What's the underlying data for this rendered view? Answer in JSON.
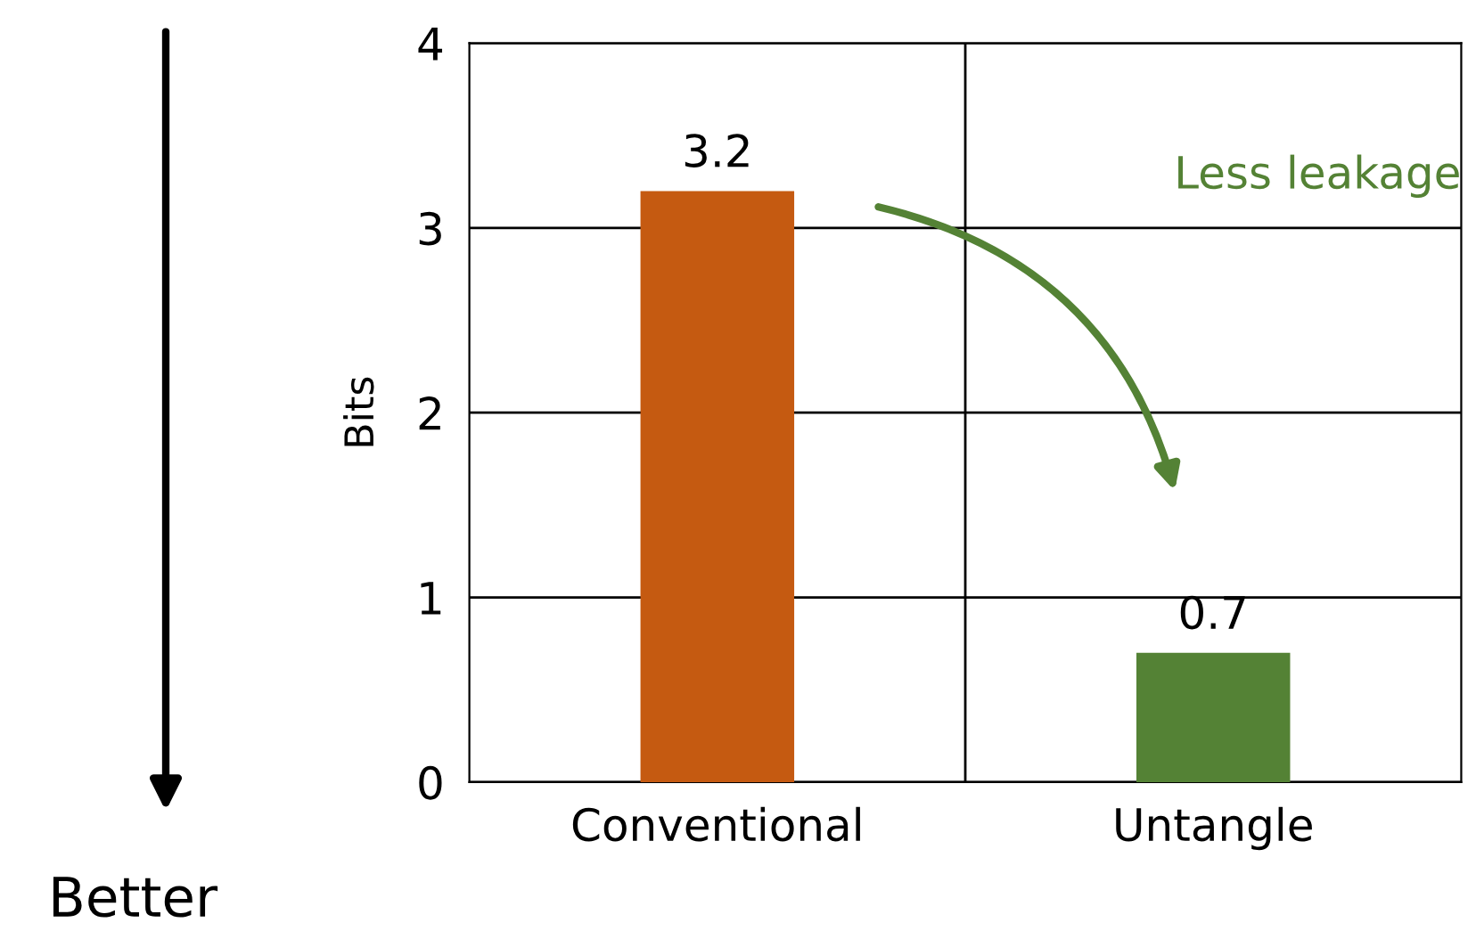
{
  "chart_data": {
    "type": "bar",
    "ylabel": "Bits",
    "categories": [
      "Conventional",
      "Untangle"
    ],
    "values": [
      3.2,
      0.7
    ],
    "colors": [
      "#c55a11",
      "#548235"
    ],
    "ylim": [
      0,
      4
    ],
    "yticks": [
      0,
      1,
      2,
      3,
      4
    ],
    "grid": true,
    "data_labels": true,
    "annotations": [
      "Better",
      "Less leakage"
    ]
  }
}
